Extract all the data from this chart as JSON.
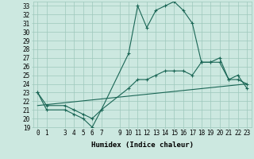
{
  "xlabel": "Humidex (Indice chaleur)",
  "bg_color": "#cce8e0",
  "grid_color": "#9ec8bc",
  "line_color": "#1a6655",
  "xlim_min": -0.5,
  "xlim_max": 23.5,
  "ylim_min": 19,
  "ylim_max": 33.5,
  "xticks": [
    0,
    1,
    3,
    4,
    5,
    6,
    7,
    9,
    10,
    11,
    12,
    13,
    14,
    15,
    16,
    17,
    18,
    19,
    20,
    21,
    22,
    23
  ],
  "yticks": [
    19,
    20,
    21,
    22,
    23,
    24,
    25,
    26,
    27,
    28,
    29,
    30,
    31,
    32,
    33
  ],
  "line1_x": [
    0,
    1,
    3,
    4,
    5,
    6,
    7,
    10,
    11,
    12,
    13,
    14,
    15,
    16,
    17,
    18,
    19,
    20,
    21,
    22,
    23
  ],
  "line1_y": [
    23.0,
    21.0,
    21.0,
    20.5,
    20.0,
    19.0,
    21.0,
    27.5,
    33.0,
    30.5,
    32.5,
    33.0,
    33.5,
    32.5,
    31.0,
    26.5,
    26.5,
    27.0,
    24.5,
    25.0,
    23.5
  ],
  "line2_x": [
    0,
    1,
    3,
    4,
    5,
    6,
    7,
    10,
    11,
    12,
    13,
    14,
    15,
    16,
    17,
    18,
    19,
    20,
    21,
    22,
    23
  ],
  "line2_y": [
    23.0,
    21.5,
    21.5,
    21.0,
    20.5,
    20.0,
    21.0,
    23.5,
    24.5,
    24.5,
    25.0,
    25.5,
    25.5,
    25.5,
    25.0,
    26.5,
    26.5,
    26.5,
    24.5,
    24.5,
    24.0
  ],
  "line3_x": [
    0,
    23
  ],
  "line3_y": [
    21.5,
    24.0
  ],
  "marker": "+",
  "marker_size": 3,
  "lw": 0.8,
  "tick_fontsize": 5.5,
  "xlabel_fontsize": 6.5
}
